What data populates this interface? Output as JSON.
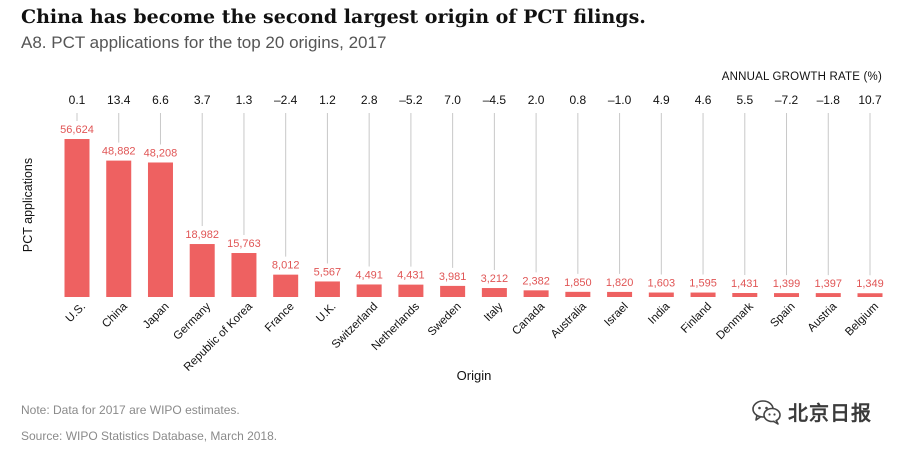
{
  "header": {
    "headline": "China has become the second largest origin of PCT filings.",
    "subtitle": "A8. PCT applications for the top 20 origins, 2017"
  },
  "growth_title": "ANNUAL GROWTH RATE (%)",
  "footer": {
    "note": "Note: Data for 2017 are WIPO estimates.",
    "source": "Source: WIPO Statistics Database, March 2018."
  },
  "watermark": {
    "text": "北京日报",
    "icon": "wechat-icon"
  },
  "colors": {
    "bar": "#ee6161",
    "value_label": "#e05555",
    "guide_line": "#c8c8c8"
  },
  "chart_data": {
    "type": "bar",
    "title": "",
    "xlabel": "Origin",
    "ylabel": "PCT applications",
    "ylim": [
      0,
      56624
    ],
    "grid": false,
    "categories": [
      "U.S.",
      "China",
      "Japan",
      "Germany",
      "Republic of Korea",
      "France",
      "U.K.",
      "Switzerland",
      "Netherlands",
      "Sweden",
      "Italy",
      "Canada",
      "Australia",
      "Israel",
      "India",
      "Finland",
      "Denmark",
      "Spain",
      "Austria",
      "Belgium"
    ],
    "values": [
      56624,
      48882,
      48208,
      18982,
      15763,
      8012,
      5567,
      4491,
      4431,
      3981,
      3212,
      2382,
      1850,
      1820,
      1603,
      1595,
      1431,
      1399,
      1397,
      1349
    ],
    "value_labels": [
      "56,624",
      "48,882",
      "48,208",
      "18,982",
      "15,763",
      "8,012",
      "5,567",
      "4,491",
      "4,431",
      "3,981",
      "3,212",
      "2,382",
      "1,850",
      "1,820",
      "1,603",
      "1,595",
      "1,431",
      "1,399",
      "1,397",
      "1,349"
    ],
    "growth_rates": [
      "0.1",
      "13.4",
      "6.6",
      "3.7",
      "1.3",
      "–2.4",
      "1.2",
      "2.8",
      "–5.2",
      "7.0",
      "–4.5",
      "2.0",
      "0.8",
      "–1.0",
      "4.9",
      "4.6",
      "5.5",
      "–7.2",
      "–1.8",
      "10.7"
    ]
  }
}
